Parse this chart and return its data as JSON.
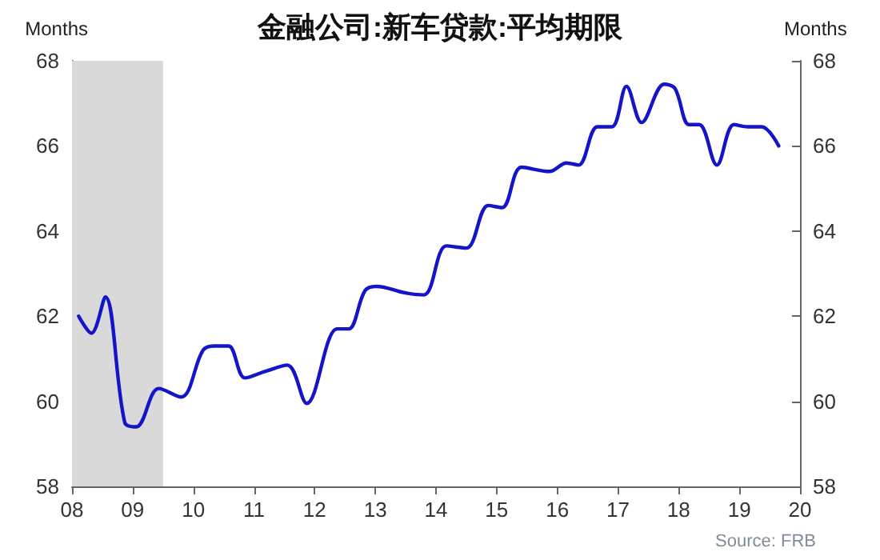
{
  "chart_data": {
    "type": "line",
    "title": "金融公司:新车贷款:平均期限",
    "ylabel": "Months",
    "y2label": "Months",
    "annotations": [
      "Source: FRB"
    ],
    "x": [
      2008.11,
      2008.32,
      2008.55,
      2008.87,
      2009.06,
      2009.43,
      2009.8,
      2010.16,
      2010.35,
      2010.58,
      2010.85,
      2011.18,
      2011.55,
      2011.87,
      2012.37,
      2012.56,
      2012.83,
      2013.02,
      2013.48,
      2013.8,
      2014.17,
      2014.5,
      2014.86,
      2015.09,
      2015.41,
      2015.87,
      2016.15,
      2016.35,
      2016.66,
      2016.9,
      2017.14,
      2017.39,
      2017.76,
      2017.94,
      2018.17,
      2018.34,
      2018.63,
      2018.91,
      2019.14,
      2019.37,
      2019.65
    ],
    "series": [
      {
        "color": "#1414c8",
        "values": [
          62.0,
          61.6,
          62.45,
          59.5,
          59.4,
          60.3,
          60.1,
          61.2,
          61.3,
          61.3,
          60.55,
          60.7,
          60.85,
          59.95,
          61.7,
          61.7,
          62.6,
          62.7,
          62.55,
          62.5,
          63.65,
          63.6,
          64.6,
          64.55,
          65.5,
          65.4,
          65.6,
          65.55,
          66.45,
          66.45,
          67.4,
          66.55,
          67.45,
          67.35,
          66.5,
          66.5,
          65.55,
          66.5,
          66.45,
          66.45,
          66.0
        ]
      }
    ],
    "xlim": [
      2008,
      2020
    ],
    "xticks": [
      {
        "value": 2008,
        "label": "08"
      },
      {
        "value": 2009,
        "label": "09"
      },
      {
        "value": 2010,
        "label": "10"
      },
      {
        "value": 2011,
        "label": "11"
      },
      {
        "value": 2012,
        "label": "12"
      },
      {
        "value": 2013,
        "label": "13"
      },
      {
        "value": 2014,
        "label": "14"
      },
      {
        "value": 2015,
        "label": "15"
      },
      {
        "value": 2016,
        "label": "16"
      },
      {
        "value": 2017,
        "label": "17"
      },
      {
        "value": 2018,
        "label": "18"
      },
      {
        "value": 2019,
        "label": "19"
      },
      {
        "value": 2020,
        "label": "20"
      }
    ],
    "ylim": [
      58,
      68
    ],
    "yticks": [
      58,
      60,
      62,
      64,
      66,
      68
    ],
    "y2lim": [
      58,
      68
    ],
    "y2ticks": [
      58,
      60,
      62,
      64,
      66,
      68
    ],
    "bands": [
      {
        "axis": "x",
        "from": 2008,
        "to": 2009.5,
        "color": "#d9d9d9"
      }
    ],
    "grid": false,
    "marker": "none",
    "line_style": "solid"
  }
}
